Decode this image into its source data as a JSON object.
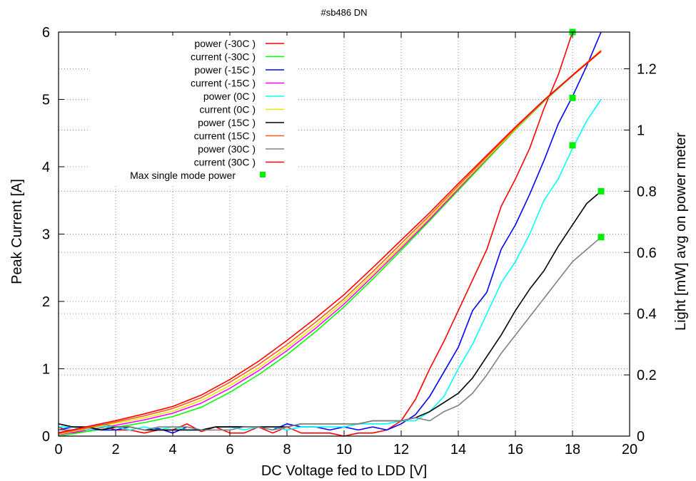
{
  "chart_data": {
    "type": "line",
    "title": "#sb486 DN",
    "xlabel": "DC Voltage fed to LDD [V]",
    "ylabel": "Peak Current [A]",
    "y2label": "Light [mW] avg on power meter",
    "xlim": [
      0,
      20
    ],
    "ylim": [
      0,
      6
    ],
    "y2lim": [
      0,
      1.32
    ],
    "xticks": [
      "0",
      "2",
      "4",
      "6",
      "8",
      "10",
      "12",
      "14",
      "16",
      "18",
      "20"
    ],
    "yticks": [
      "0",
      "1",
      "2",
      "3",
      "4",
      "5",
      "6"
    ],
    "y2ticks": [
      "0",
      "0.2",
      "0.4",
      "0.6",
      "0.8",
      "1",
      "1.2"
    ],
    "grid": true,
    "legend_position": "top-left",
    "series": [
      {
        "name": "power (-30C )",
        "axis": "y2",
        "color": "#ff0000",
        "x": [
          0,
          0.5,
          1,
          1.5,
          2,
          2.5,
          3,
          3.5,
          4,
          4.5,
          5,
          5.5,
          6,
          6.5,
          7,
          7.5,
          8,
          8.5,
          9,
          9.5,
          10,
          10.5,
          11,
          11.5,
          12,
          12.5,
          13,
          13.5,
          14,
          14.5,
          15,
          15.5,
          16,
          16.5,
          17,
          17.5,
          18
        ],
        "y": [
          0.03,
          0.01,
          0.02,
          0.035,
          0.02,
          0.02,
          0.01,
          0.02,
          0.02,
          0.04,
          0.015,
          0.03,
          0.01,
          0.01,
          0.03,
          0.01,
          0.03,
          0.01,
          0.01,
          0.01,
          0.0,
          0.01,
          0.01,
          0.02,
          0.05,
          0.12,
          0.22,
          0.31,
          0.41,
          0.51,
          0.61,
          0.75,
          0.84,
          0.94,
          1.07,
          1.18,
          1.32
        ]
      },
      {
        "name": "current (-30C )",
        "axis": "y",
        "color": "#00ff00",
        "x": [
          0,
          1,
          2,
          3,
          4,
          5,
          6,
          7,
          8,
          9,
          10,
          11,
          12,
          13,
          14,
          15,
          16,
          17,
          18,
          19
        ],
        "y": [
          0.0,
          0.07,
          0.13,
          0.2,
          0.29,
          0.43,
          0.65,
          0.91,
          1.21,
          1.55,
          1.92,
          2.33,
          2.76,
          3.2,
          3.65,
          4.1,
          4.55,
          4.97,
          5.35,
          5.72
        ]
      },
      {
        "name": "power (-15C )",
        "axis": "y2",
        "color": "#0000ff",
        "x": [
          0,
          0.5,
          1,
          1.5,
          2,
          2.5,
          3,
          3.5,
          4,
          4.5,
          5,
          5.5,
          6,
          6.5,
          7,
          7.5,
          8,
          8.5,
          9,
          9.5,
          10,
          10.5,
          11,
          11.5,
          12,
          12.5,
          13,
          13.5,
          14,
          14.5,
          15,
          15.5,
          16,
          16.5,
          17,
          17.5,
          18,
          18.5,
          19
        ],
        "y": [
          0.02,
          0.03,
          0.025,
          0.02,
          0.02,
          0.03,
          0.02,
          0.025,
          0.01,
          0.03,
          0.02,
          0.03,
          0.03,
          0.03,
          0.03,
          0.02,
          0.04,
          0.03,
          0.03,
          0.02,
          0.03,
          0.02,
          0.03,
          0.02,
          0.04,
          0.07,
          0.13,
          0.21,
          0.29,
          0.41,
          0.47,
          0.61,
          0.69,
          0.79,
          0.9,
          1.02,
          1.11,
          1.21,
          1.32
        ]
      },
      {
        "name": "current (-15C )",
        "axis": "y",
        "color": "#ff00ff",
        "x": [
          0,
          1,
          2,
          3,
          4,
          5,
          6,
          7,
          8,
          9,
          10,
          11,
          12,
          13,
          14,
          15,
          16,
          17,
          18,
          19
        ],
        "y": [
          0.02,
          0.09,
          0.16,
          0.24,
          0.34,
          0.49,
          0.71,
          0.97,
          1.27,
          1.6,
          1.96,
          2.37,
          2.79,
          3.22,
          3.67,
          4.12,
          4.56,
          4.98,
          5.36,
          5.73
        ]
      },
      {
        "name": "power (0C )",
        "axis": "y2",
        "color": "#00ffff",
        "x": [
          0,
          0.5,
          1,
          1.5,
          2,
          2.5,
          3,
          3.5,
          4,
          4.5,
          5,
          5.5,
          6,
          6.5,
          7,
          7.5,
          8,
          8.5,
          9,
          9.5,
          10,
          10.5,
          11,
          11.5,
          12,
          12.5,
          13,
          13.5,
          14,
          14.5,
          15,
          15.5,
          16,
          16.5,
          17,
          17.5,
          18,
          18.5,
          19
        ],
        "y": [
          0.03,
          0.03,
          0.02,
          0.03,
          0.03,
          0.02,
          0.03,
          0.02,
          0.03,
          0.02,
          0.02,
          0.03,
          0.03,
          0.02,
          0.03,
          0.03,
          0.02,
          0.03,
          0.03,
          0.03,
          0.03,
          0.04,
          0.04,
          0.04,
          0.05,
          0.05,
          0.08,
          0.13,
          0.22,
          0.3,
          0.4,
          0.5,
          0.57,
          0.66,
          0.77,
          0.84,
          0.94,
          1.03,
          1.1
        ]
      },
      {
        "name": "current (0C )",
        "axis": "y",
        "color": "#e8e800",
        "x": [
          0,
          1,
          2,
          3,
          4,
          5,
          6,
          7,
          8,
          9,
          10,
          11,
          12,
          13,
          14,
          15,
          16,
          17,
          18,
          19
        ],
        "y": [
          0.03,
          0.11,
          0.19,
          0.27,
          0.37,
          0.53,
          0.75,
          1.01,
          1.31,
          1.64,
          2.0,
          2.4,
          2.82,
          3.25,
          3.69,
          4.13,
          4.56,
          4.98,
          5.36,
          5.73
        ]
      },
      {
        "name": "power (15C )",
        "axis": "y2",
        "color": "#000000",
        "x": [
          0,
          0.5,
          1,
          1.5,
          2,
          2.5,
          3,
          3.5,
          4,
          4.5,
          5,
          5.5,
          6,
          6.5,
          7,
          7.5,
          8,
          8.5,
          9,
          9.5,
          10,
          10.5,
          11,
          11.5,
          12,
          12.5,
          13,
          13.5,
          14,
          14.5,
          15,
          15.5,
          16,
          16.5,
          17,
          17.5,
          18,
          18.5,
          19
        ],
        "y": [
          0.04,
          0.03,
          0.03,
          0.02,
          0.03,
          0.03,
          0.02,
          0.02,
          0.02,
          0.02,
          0.02,
          0.03,
          0.03,
          0.03,
          0.03,
          0.03,
          0.03,
          0.04,
          0.04,
          0.04,
          0.04,
          0.04,
          0.05,
          0.05,
          0.05,
          0.06,
          0.08,
          0.11,
          0.14,
          0.19,
          0.26,
          0.33,
          0.41,
          0.48,
          0.54,
          0.62,
          0.69,
          0.76,
          0.8
        ]
      },
      {
        "name": "current (15C )",
        "axis": "y",
        "color": "#ff5a1a",
        "x": [
          0,
          1,
          2,
          3,
          4,
          5,
          6,
          7,
          8,
          9,
          10,
          11,
          12,
          13,
          14,
          15,
          16,
          17,
          18,
          19
        ],
        "y": [
          0.04,
          0.12,
          0.21,
          0.3,
          0.41,
          0.57,
          0.8,
          1.06,
          1.36,
          1.69,
          2.04,
          2.44,
          2.86,
          3.28,
          3.72,
          4.15,
          4.57,
          4.98,
          5.35,
          5.71
        ]
      },
      {
        "name": "power (30C )",
        "axis": "y2",
        "color": "#808080",
        "x": [
          0,
          0.5,
          1,
          1.5,
          2,
          2.5,
          3,
          3.5,
          4,
          4.5,
          5,
          5.5,
          6,
          6.5,
          7,
          7.5,
          8,
          8.5,
          9,
          9.5,
          10,
          10.5,
          11,
          11.5,
          12,
          12.5,
          13,
          13.5,
          14,
          14.5,
          15,
          15.5,
          16,
          16.5,
          17,
          17.5,
          18,
          18.5,
          19
        ],
        "y": [
          0.02,
          0.02,
          0.03,
          0.04,
          0.03,
          0.03,
          0.02,
          0.03,
          0.03,
          0.03,
          0.02,
          0.02,
          0.02,
          0.03,
          0.03,
          0.02,
          0.03,
          0.04,
          0.04,
          0.04,
          0.04,
          0.04,
          0.05,
          0.05,
          0.05,
          0.06,
          0.05,
          0.08,
          0.1,
          0.14,
          0.2,
          0.27,
          0.33,
          0.39,
          0.45,
          0.51,
          0.57,
          0.61,
          0.65
        ]
      },
      {
        "name": "current (30C )",
        "axis": "y",
        "color": "#ff0000",
        "x": [
          0,
          1,
          2,
          3,
          4,
          5,
          6,
          7,
          8,
          9,
          10,
          11,
          12,
          13,
          14,
          15,
          16,
          17,
          18,
          19
        ],
        "y": [
          0.05,
          0.14,
          0.23,
          0.33,
          0.44,
          0.61,
          0.84,
          1.11,
          1.42,
          1.75,
          2.1,
          2.5,
          2.91,
          3.32,
          3.75,
          4.17,
          4.59,
          4.99,
          5.36,
          5.72
        ]
      }
    ],
    "markers": {
      "name": "Max single mode power",
      "axis": "y2",
      "color": "#00ee00",
      "x": [
        18,
        18,
        18,
        19,
        19
      ],
      "y": [
        1.32,
        1.105,
        0.95,
        0.8,
        0.65
      ]
    }
  }
}
